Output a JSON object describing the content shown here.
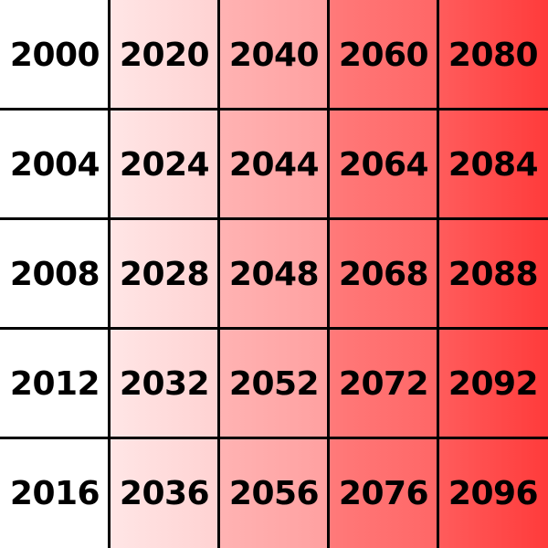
{
  "grid": {
    "rows": [
      [
        "2000",
        "2020",
        "2040",
        "2060",
        "2080"
      ],
      [
        "2004",
        "2024",
        "2044",
        "2064",
        "2084"
      ],
      [
        "2008",
        "2028",
        "2048",
        "2068",
        "2088"
      ],
      [
        "2012",
        "2032",
        "2052",
        "2072",
        "2092"
      ],
      [
        "2016",
        "2036",
        "2056",
        "2076",
        "2096"
      ]
    ],
    "column_colors": [
      "#ffffff",
      "#ffdcdc",
      "#ffa8a8",
      "#ff7070",
      "#ff4a4a"
    ],
    "line_color": "#000000",
    "text_color": "#000000"
  }
}
